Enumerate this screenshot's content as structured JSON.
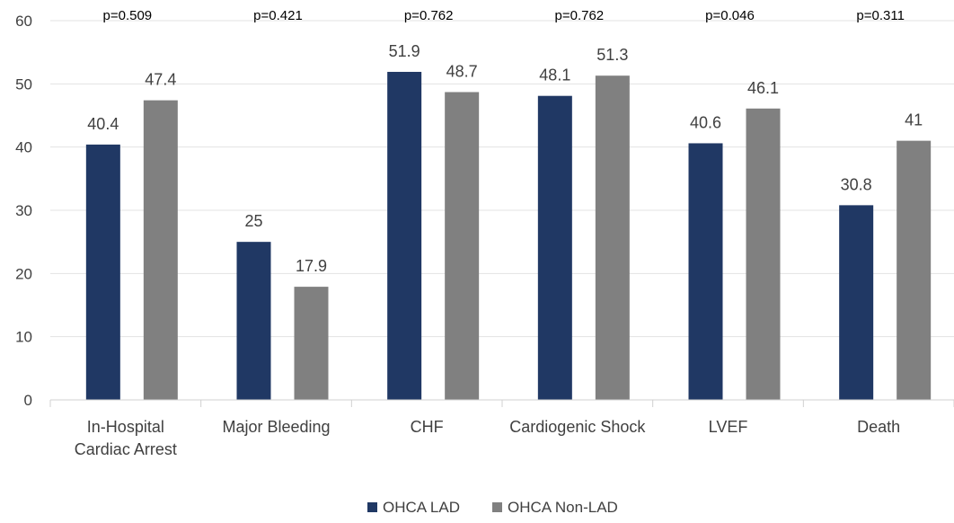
{
  "chart_data": {
    "type": "bar",
    "title": "",
    "xlabel": "",
    "ylabel": "",
    "ylim": [
      0,
      60
    ],
    "yticks": [
      0,
      10,
      20,
      30,
      40,
      50,
      60
    ],
    "grid": true,
    "legend_position": "bottom",
    "categories": [
      [
        "In-Hospital",
        "Cardiac Arrest"
      ],
      [
        "Major Bleeding"
      ],
      [
        "CHF"
      ],
      [
        "Cardiogenic Shock"
      ],
      [
        "LVEF"
      ],
      [
        "Death"
      ]
    ],
    "p_values": [
      "p=0.509",
      "p=0.421",
      "p=0.762",
      "p=0.762",
      "p=0.046",
      "p=0.311"
    ],
    "series": [
      {
        "name": "OHCA LAD",
        "color": "#203864",
        "values": [
          40.4,
          25,
          51.9,
          48.1,
          40.6,
          30.8
        ],
        "labels": [
          "40.4",
          "25",
          "51.9",
          "48.1",
          "40.6",
          "30.8"
        ]
      },
      {
        "name": "OHCA Non-LAD",
        "color": "#808080",
        "values": [
          47.4,
          17.9,
          48.7,
          51.3,
          46.1,
          41
        ],
        "labels": [
          "47.4",
          "17.9",
          "48.7",
          "51.3",
          "46.1",
          "41"
        ]
      }
    ]
  }
}
